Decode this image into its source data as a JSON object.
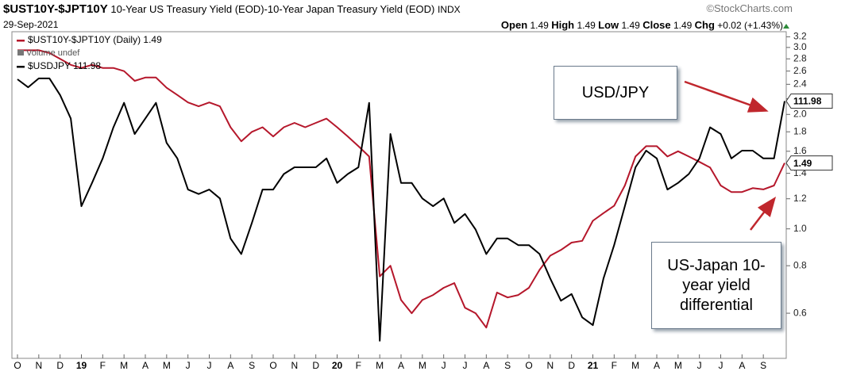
{
  "chart_data": {
    "type": "line",
    "title": "$UST10Y-$JPT10Y",
    "subtitle": "10-Year US Treasury Yield (EOD)-10-Year Japan Treasury Yield (EOD)",
    "exchange": "INDX",
    "source": "©StockCharts.com",
    "date": "29-Sep-2021",
    "quote": [
      {
        "label": "Open",
        "value": 1.49
      },
      {
        "label": "High",
        "value": 1.49
      },
      {
        "label": "Low",
        "value": 1.49
      },
      {
        "label": "Close",
        "value": 1.49
      }
    ],
    "change_label": "Chg",
    "change": "+0.02 (+1.43%)",
    "volume_note": "Volume undef",
    "annotations": [
      "USD/JPY",
      "US-Japan 10-year yield differential"
    ],
    "categories": [
      "O",
      null,
      "N",
      null,
      "D",
      null,
      "19",
      null,
      "F",
      null,
      "M",
      null,
      "A",
      null,
      "M",
      null,
      "J",
      null,
      "J",
      null,
      "A",
      null,
      "S",
      null,
      "O",
      null,
      "N",
      null,
      "D",
      null,
      "20",
      null,
      "F",
      null,
      "M",
      null,
      "A",
      null,
      "M",
      null,
      "J",
      null,
      "J",
      null,
      "A",
      null,
      "S",
      null,
      "O",
      null,
      "N",
      null,
      "D",
      null,
      "21",
      null,
      "F",
      null,
      "M",
      null,
      "A",
      null,
      "M",
      null,
      "J",
      null,
      "J",
      null,
      "A",
      null,
      "S",
      null,
      null
    ],
    "series": [
      {
        "name": "$UST10Y-$JPT10Y (Daily)",
        "color": "#b5172b",
        "values": [
          2.95,
          2.95,
          2.95,
          2.9,
          2.8,
          2.7,
          2.65,
          2.7,
          2.65,
          2.65,
          2.6,
          2.45,
          2.5,
          2.5,
          2.35,
          2.25,
          2.15,
          2.1,
          2.15,
          2.1,
          1.85,
          1.7,
          1.8,
          1.85,
          1.75,
          1.85,
          1.9,
          1.85,
          1.9,
          1.95,
          1.85,
          1.75,
          1.65,
          1.55,
          0.75,
          0.8,
          0.65,
          0.6,
          0.65,
          0.67,
          0.7,
          0.72,
          0.62,
          0.6,
          0.55,
          0.68,
          0.66,
          0.67,
          0.7,
          0.78,
          0.85,
          0.88,
          0.92,
          0.93,
          1.05,
          1.1,
          1.15,
          1.3,
          1.55,
          1.65,
          1.65,
          1.55,
          1.6,
          1.55,
          1.5,
          1.45,
          1.3,
          1.25,
          1.25,
          1.28,
          1.27,
          1.3,
          1.49
        ]
      },
      {
        "name": "$USDJPY",
        "color": "#000000",
        "axis": "y2",
        "values": [
          112.96,
          112.6,
          113,
          113,
          112.25,
          111.2,
          107.25,
          108.3,
          109.4,
          110.8,
          111.9,
          110.5,
          111.2,
          111.9,
          110.1,
          109.4,
          108,
          107.8,
          108,
          107.6,
          105.8,
          105.1,
          106.5,
          108,
          108,
          108.7,
          109,
          109,
          109,
          109.4,
          108.3,
          108.7,
          109,
          111.9,
          101.2,
          110.5,
          108.3,
          108.3,
          107.6,
          107.25,
          107.6,
          106.5,
          106.9,
          106.2,
          105.1,
          105.8,
          105.8,
          105.5,
          105.5,
          105.1,
          104,
          103,
          103.3,
          102.25,
          101.9,
          104,
          105.5,
          107.25,
          109,
          109.75,
          109.4,
          108,
          108.3,
          108.7,
          109.4,
          110.8,
          110.5,
          109.4,
          109.75,
          109.75,
          109.4,
          109.4,
          111.98
        ]
      }
    ],
    "log_scale": true,
    "ylim": [
      0.45,
      3.3
    ],
    "yticks": [
      0.6,
      0.8,
      {
        "value": 1,
        "label": "1.0"
      },
      1.2,
      1.4,
      1.6,
      1.8,
      {
        "value": 2,
        "label": "2.0"
      },
      2.2,
      2.4,
      2.6,
      2.8,
      {
        "value": 3,
        "label": "3.0"
      },
      3.2
    ],
    "y2lim": [
      100.3,
      115.1
    ],
    "grid": false
  }
}
